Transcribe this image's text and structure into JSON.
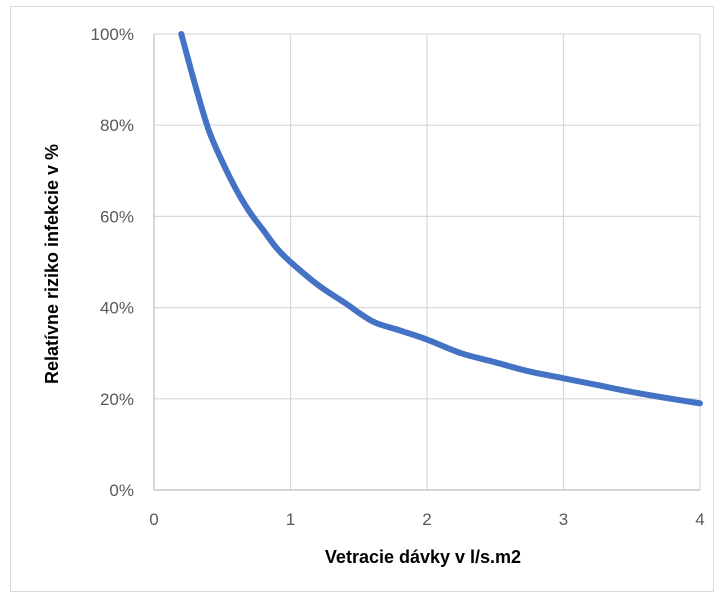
{
  "chart_data": {
    "type": "line",
    "title": "",
    "xlabel": "Vetracie dávky v l/s.m2",
    "ylabel": "Relatívne riziko infekcie v %",
    "xlim": [
      0,
      4
    ],
    "ylim": [
      0,
      100
    ],
    "x_ticks": [
      "0",
      "1",
      "2",
      "3",
      "4"
    ],
    "y_ticks": [
      "0%",
      "20%",
      "40%",
      "60%",
      "80%",
      "100%"
    ],
    "grid": true,
    "legend": "none",
    "series": [
      {
        "color": "#4472C4",
        "x": [
          0.2,
          0.3,
          0.4,
          0.5,
          0.6,
          0.7,
          0.8,
          0.9,
          1.0,
          1.2,
          1.4,
          1.6,
          1.8,
          2.0,
          2.25,
          2.5,
          2.75,
          3.0,
          3.25,
          3.5,
          3.75,
          4.0
        ],
        "y": [
          100,
          89,
          79,
          72,
          66,
          61,
          57,
          53,
          50,
          45,
          41,
          37,
          35,
          33,
          30,
          28,
          26,
          24.5,
          23,
          21.5,
          20.2,
          19
        ]
      }
    ]
  }
}
